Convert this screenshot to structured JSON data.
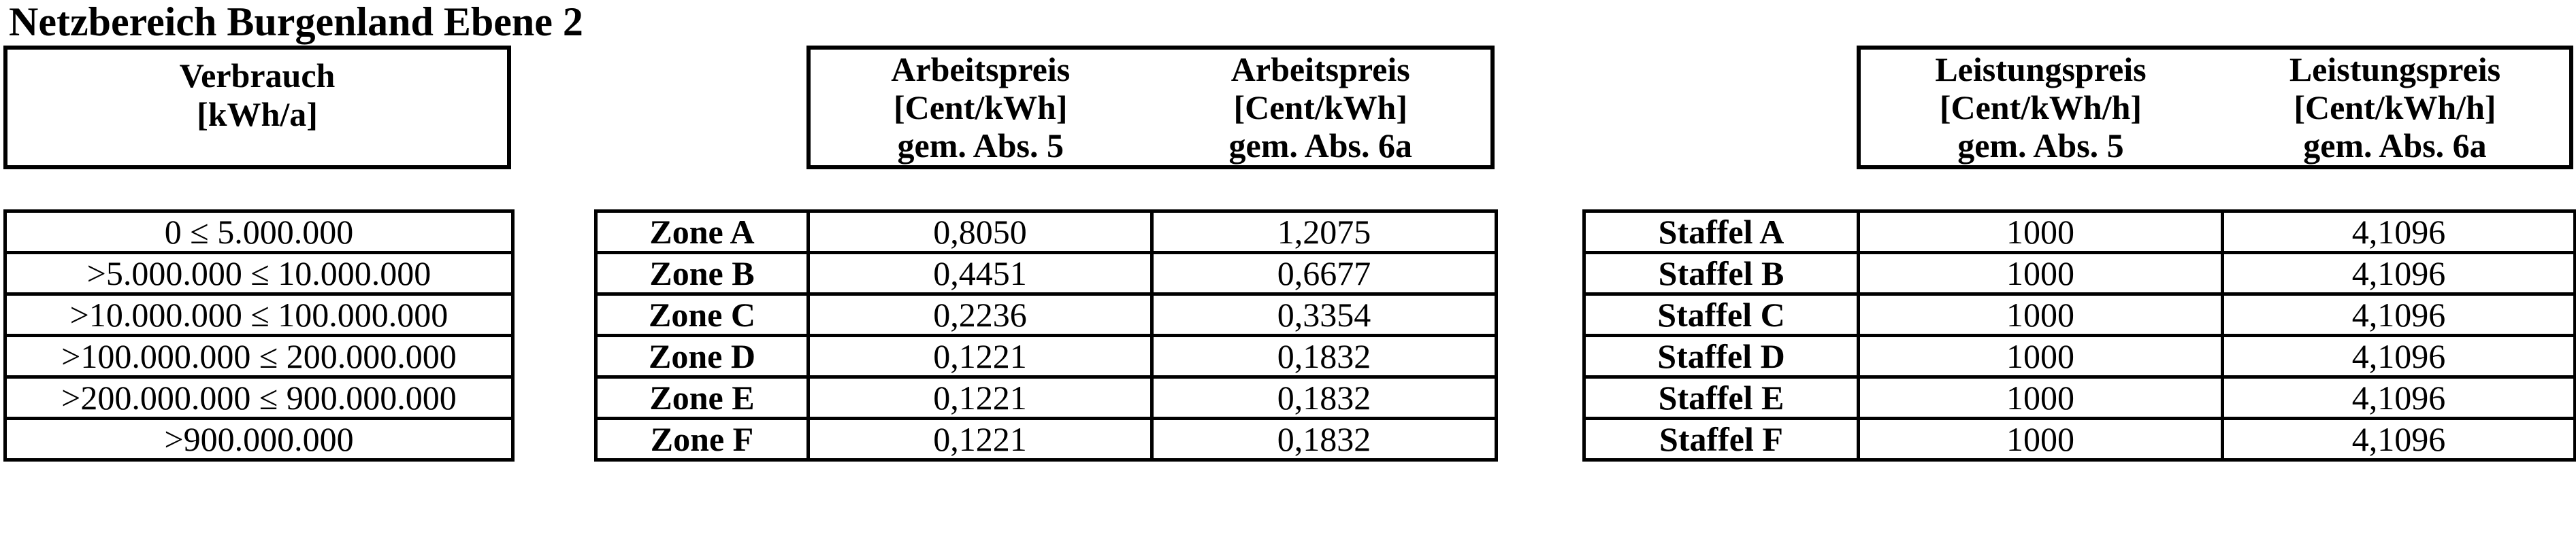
{
  "title": "Netzbereich Burgenland Ebene 2",
  "colors": {
    "text": "#000000",
    "border": "#000000",
    "background": "#ffffff"
  },
  "headers": {
    "verbrauch": {
      "line1": "Verbrauch",
      "line2": "[kWh/a]"
    },
    "arbeitspreis": {
      "col1": {
        "line1": "Arbeitspreis",
        "line2": "[Cent/kWh]",
        "line3": "gem. Abs. 5"
      },
      "col2": {
        "line1": "Arbeitspreis",
        "line2": "[Cent/kWh]",
        "line3": "gem. Abs. 6a"
      }
    },
    "leistungspreis": {
      "col1": {
        "line1": "Leistungspreis",
        "line2": "[Cent/kWh/h]",
        "line3": "gem. Abs. 5"
      },
      "col2": {
        "line1": "Leistungspreis",
        "line2": "[Cent/kWh/h]",
        "line3": "gem. Abs. 6a"
      }
    }
  },
  "tables": {
    "verbrauch": {
      "rows": [
        "0 ≤ 5.000.000",
        ">5.000.000 ≤ 10.000.000",
        ">10.000.000 ≤ 100.000.000",
        ">100.000.000 ≤ 200.000.000",
        ">200.000.000 ≤ 900.000.000",
        ">900.000.000"
      ]
    },
    "zone": {
      "rows": [
        {
          "label": "Zone A",
          "abs5": "0,8050",
          "abs6a": "1,2075"
        },
        {
          "label": "Zone B",
          "abs5": "0,4451",
          "abs6a": "0,6677"
        },
        {
          "label": "Zone C",
          "abs5": "0,2236",
          "abs6a": "0,3354"
        },
        {
          "label": "Zone D",
          "abs5": "0,1221",
          "abs6a": "0,1832"
        },
        {
          "label": "Zone E",
          "abs5": "0,1221",
          "abs6a": "0,1832"
        },
        {
          "label": "Zone F",
          "abs5": "0,1221",
          "abs6a": "0,1832"
        }
      ]
    },
    "staffel": {
      "rows": [
        {
          "label": "Staffel A",
          "abs5": "1000",
          "abs6a": "4,1096"
        },
        {
          "label": "Staffel B",
          "abs5": "1000",
          "abs6a": "4,1096"
        },
        {
          "label": "Staffel C",
          "abs5": "1000",
          "abs6a": "4,1096"
        },
        {
          "label": "Staffel D",
          "abs5": "1000",
          "abs6a": "4,1096"
        },
        {
          "label": "Staffel E",
          "abs5": "1000",
          "abs6a": "4,1096"
        },
        {
          "label": "Staffel F",
          "abs5": "1000",
          "abs6a": "4,1096"
        }
      ]
    }
  }
}
